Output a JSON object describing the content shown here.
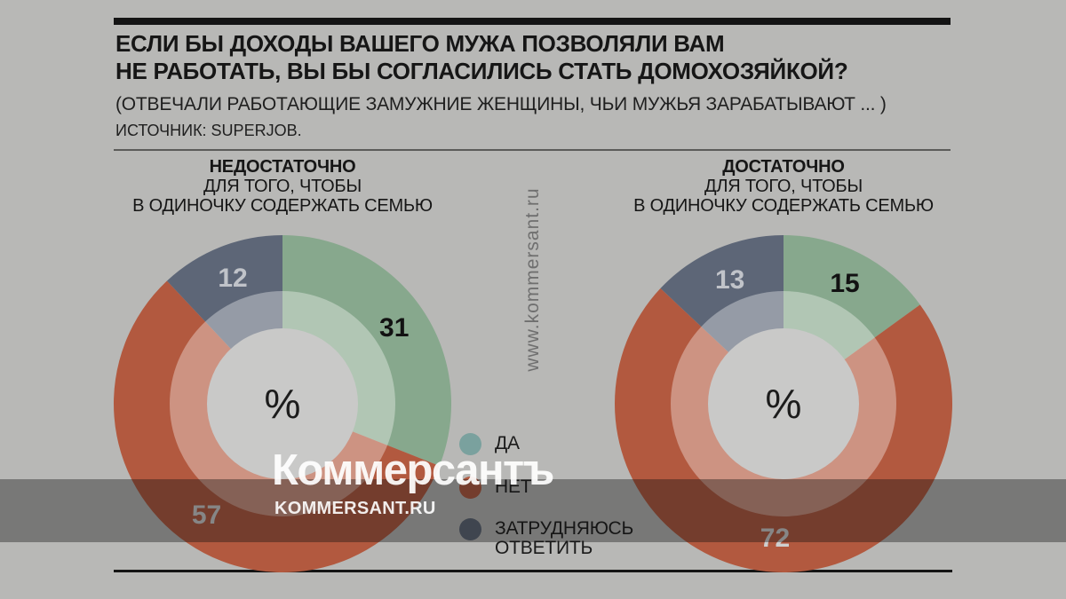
{
  "header": {
    "title_line1": "ЕСЛИ БЫ ДОХОДЫ ВАШЕГО МУЖА ПОЗВОЛЯЛИ ВАМ",
    "title_line2": "НЕ РАБОТАТЬ, ВЫ БЫ СОГЛАСИЛИСЬ СТАТЬ ДОМОХОЗЯЙКОЙ?",
    "subtitle": "(ОТВЕЧАЛИ РАБОТАЮЩИЕ ЗАМУЖНИЕ ЖЕНЩИНЫ, ЧЬИ МУЖЬЯ ЗАРАБАТЫВАЮТ ... )",
    "source": "ИСТОЧНИК: SUPERJOB."
  },
  "watermarks": {
    "vertical_url": "www.kommersant.ru",
    "logo": "Коммерсантъ",
    "logo_sub": "KOMMERSANT.RU"
  },
  "legend": {
    "items": [
      {
        "label": "ДА",
        "color": "#7aa19e"
      },
      {
        "label": "НЕТ",
        "color": "#b2593f"
      },
      {
        "label": "ЗАТРУДНЯЮСЬ ОТВЕТИТЬ",
        "color": "#5d6677"
      }
    ]
  },
  "palette": {
    "background": "#b8b8b6",
    "band_overlay": "rgba(15,15,15,0.38)",
    "rule_black": "#141414",
    "yes_green": "#87a88d",
    "no_red": "#b2593f",
    "undecided_slate": "#5d6677"
  },
  "chart_data": [
    {
      "type": "pie",
      "title": "НЕДОСТАТОЧНО",
      "subtitle_lines": [
        "ДЛЯ ТОГО, ЧТОБЫ",
        "В ОДИНОЧКУ СОДЕРЖАТЬ СЕМЬЮ"
      ],
      "unit": "%",
      "categories": [
        "ДА",
        "НЕТ",
        "ЗАТРУДНЯЮСЬ ОТВЕТИТЬ"
      ],
      "values": [
        31,
        57,
        12
      ],
      "colors": [
        "#87a88d",
        "#b2593f",
        "#5d6677"
      ],
      "value_label_colors": [
        "#121212",
        "#cfcfcf",
        "#c0c3c9"
      ],
      "start_angle_deg": 0,
      "direction": "clockwise",
      "inner_overlay": "rgba(255,255,255,0.35)",
      "center_fill": "#c9c9c8",
      "center_text_color": "#1c1c1c"
    },
    {
      "type": "pie",
      "title": "ДОСТАТОЧНО",
      "subtitle_lines": [
        "ДЛЯ ТОГО, ЧТОБЫ",
        "В ОДИНОЧКУ СОДЕРЖАТЬ СЕМЬЮ"
      ],
      "unit": "%",
      "categories": [
        "ДА",
        "НЕТ",
        "ЗАТРУДНЯЮСЬ ОТВЕТИТЬ"
      ],
      "values": [
        15,
        72,
        13
      ],
      "colors": [
        "#87a88d",
        "#b2593f",
        "#5d6677"
      ],
      "value_label_colors": [
        "#121212",
        "#cfcfcf",
        "#c0c3c9"
      ],
      "start_angle_deg": 0,
      "direction": "clockwise",
      "inner_overlay": "rgba(255,255,255,0.35)",
      "center_fill": "#c9c9c8",
      "center_text_color": "#1c1c1c"
    }
  ]
}
